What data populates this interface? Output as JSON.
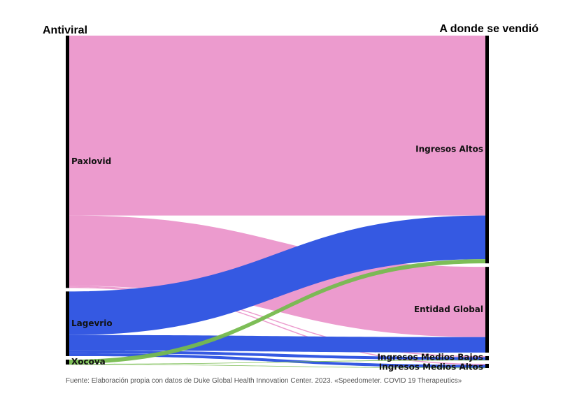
{
  "chart_data": {
    "type": "sankey",
    "left_header": "Antiviral",
    "right_header": "A donde se vendió",
    "source_note": "Fuente: Elaboración propia con datos de Duke Global Health Innovation Center. 2023. «Speedometer. COVID 19 Therapeutics»",
    "sources": [
      {
        "name": "Paxlovid",
        "color": "#EC9BCE"
      },
      {
        "name": "Lagevrio",
        "color": "#3559E2"
      },
      {
        "name": "Xocova",
        "color": "#76BB4E"
      }
    ],
    "targets": [
      {
        "name": "Ingresos Altos"
      },
      {
        "name": "Entidad Global"
      },
      {
        "name": "Ingresos Medios Bajos"
      },
      {
        "name": "Ingresos Medios Altos"
      }
    ],
    "flows": [
      {
        "source": "Paxlovid",
        "target": "Ingresos Altos",
        "value": 256
      },
      {
        "source": "Paxlovid",
        "target": "Entidad Global",
        "value": 100
      },
      {
        "source": "Paxlovid",
        "target": "Ingresos Medios Bajos",
        "value": 1.5
      },
      {
        "source": "Paxlovid",
        "target": "Ingresos Medios Altos",
        "value": 1.5
      },
      {
        "source": "Lagevrio",
        "target": "Ingresos Altos",
        "value": 62
      },
      {
        "source": "Lagevrio",
        "target": "Entidad Global",
        "value": 22
      },
      {
        "source": "Lagevrio",
        "target": "Ingresos Medios Bajos",
        "value": 4
      },
      {
        "source": "Lagevrio",
        "target": "Ingresos Medios Altos",
        "value": 4
      },
      {
        "source": "Xocova",
        "target": "Ingresos Altos",
        "value": 6
      },
      {
        "source": "Xocova",
        "target": "Ingresos Medios Bajos",
        "value": 0.5
      },
      {
        "source": "Xocova",
        "target": "Ingresos Medios Altos",
        "value": 0.5
      }
    ]
  }
}
